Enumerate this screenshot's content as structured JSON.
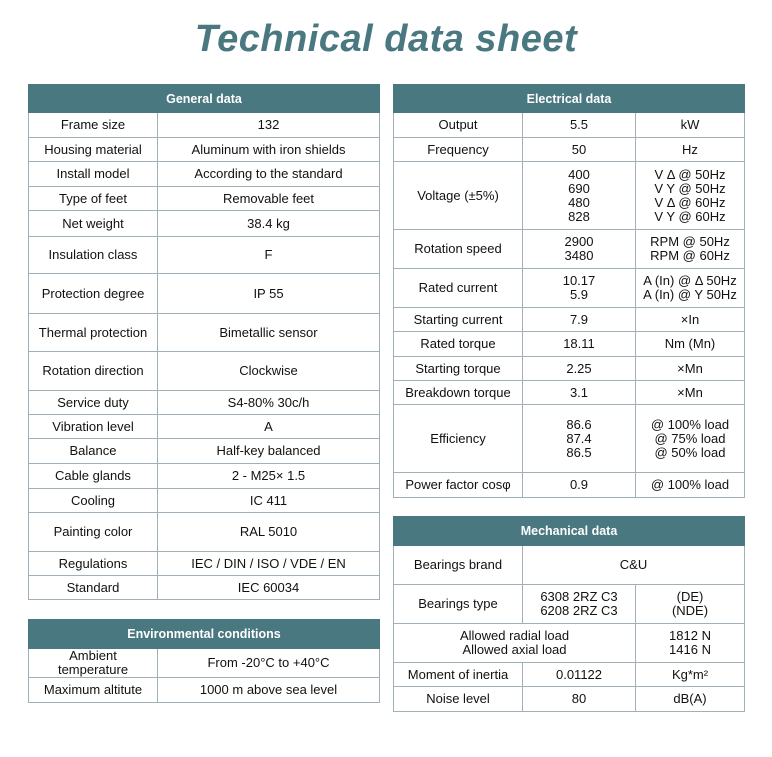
{
  "title": "Technical data sheet",
  "colors": {
    "header": "#4a7880",
    "border": "#9fb0b8"
  },
  "general": {
    "heading": "General data",
    "rows": [
      [
        "Frame size",
        "132"
      ],
      [
        "Housing material",
        "Aluminum with iron shields"
      ],
      [
        "Install model",
        "According to the standard"
      ],
      [
        "Type of feet",
        "Removable feet"
      ],
      [
        "Net weight",
        "38.4 kg"
      ],
      [
        "Insulation class",
        "F"
      ],
      [
        "Protection degree",
        "IP 55"
      ],
      [
        "Thermal protection",
        "Bimetallic sensor"
      ],
      [
        "Rotation direction",
        "Clockwise"
      ],
      [
        "Service duty",
        "S4-80% 30c/h"
      ],
      [
        "Vibration level",
        "A"
      ],
      [
        "Balance",
        "Half-key balanced"
      ],
      [
        "Cable glands",
        "2 - M25× 1.5"
      ],
      [
        "Cooling",
        "IC 411"
      ],
      [
        "Painting color",
        "RAL 5010"
      ],
      [
        "Regulations",
        "IEC / DIN / ISO / VDE / EN"
      ],
      [
        "Standard",
        "IEC 60034"
      ]
    ]
  },
  "environmental": {
    "heading": "Environmental conditions",
    "rows": [
      [
        "Ambient temperature",
        "From -20°C to +40°C"
      ],
      [
        "Maximum altitute",
        "1000 m above sea level"
      ]
    ]
  },
  "electrical": {
    "heading": "Electrical data",
    "rows": [
      [
        "Output",
        "5.5",
        "kW"
      ],
      [
        "Frequency",
        "50",
        "Hz"
      ],
      [
        "Voltage (±5%)",
        "400\n690\n480\n828",
        "V Δ @ 50Hz\nV Y @ 50Hz\nV Δ @ 60Hz\nV Y @ 60Hz"
      ],
      [
        "Rotation speed",
        "2900\n3480",
        "RPM @ 50Hz\nRPM @ 60Hz"
      ],
      [
        "Rated current",
        "10.17\n5.9",
        "A (In) @ Δ 50Hz\nA (In) @ Y 50Hz"
      ],
      [
        "Starting current",
        "7.9",
        "×In"
      ],
      [
        "Rated torque",
        "18.11",
        "Nm (Mn)"
      ],
      [
        "Starting torque",
        "2.25",
        "×Mn"
      ],
      [
        "Breakdown torque",
        "3.1",
        "×Mn"
      ],
      [
        "Efficiency",
        "86.6\n87.4\n86.5",
        "@ 100% load\n@ 75% load\n@ 50% load"
      ],
      [
        "Power factor cosφ",
        "0.9",
        "@ 100% load"
      ]
    ]
  },
  "mechanical": {
    "heading": "Mechanical data",
    "rows": [
      [
        "Bearings brand",
        "C&U"
      ],
      [
        "Bearings type",
        "6308 2RZ C3\n6208 2RZ C3",
        "(DE)\n(NDE)"
      ],
      [
        "Allowed radial load\nAllowed axial load",
        "1812 N\n1416 N"
      ],
      [
        "Moment of inertia",
        "0.01122",
        "Kg*m²"
      ],
      [
        "Noise level",
        "80",
        "dB(A)"
      ]
    ]
  }
}
